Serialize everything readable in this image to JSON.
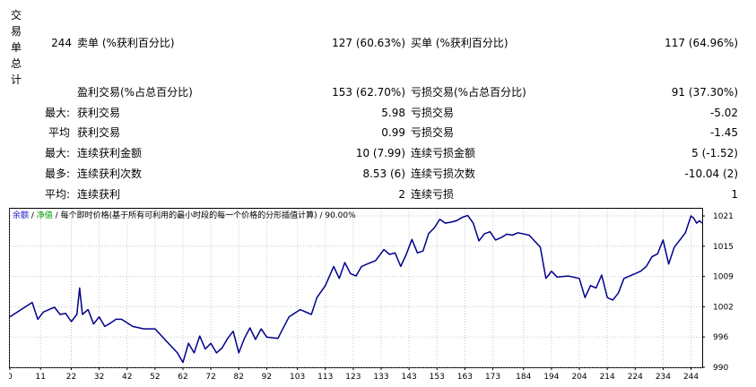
{
  "summary": {
    "vertical_label": [
      "交",
      "易",
      "单",
      "总",
      "计"
    ],
    "total": "244",
    "sell_label": "卖单 (%获利百分比)",
    "sell_value": "127 (60.63%)",
    "buy_label": "买单 (%获利百分比)",
    "buy_value": "117 (64.96%)",
    "profit_trades_label": "盈利交易(%占总百分比)",
    "profit_trades_value": "153 (62.70%)",
    "loss_trades_label": "亏损交易(%占总百分比)",
    "loss_trades_value": "91 (37.30%)"
  },
  "rows": [
    {
      "prefix": "最大:",
      "left_label": "获利交易",
      "left_value": "5.98",
      "right_label": "亏损交易",
      "right_value": "-5.02"
    },
    {
      "prefix": "平均",
      "left_label": "获利交易",
      "left_value": "0.99",
      "right_label": "亏损交易",
      "right_value": "-1.45"
    },
    {
      "prefix": "最大:",
      "left_label": "连续获利金额",
      "left_value": "10 (7.99)",
      "right_label": "连续亏损金额",
      "right_value": "5 (-1.52)"
    },
    {
      "prefix": "最多:",
      "left_label": "连续获利次数",
      "left_value": "8.53 (6)",
      "right_label": "连续亏损次数",
      "right_value": "-10.04 (2)"
    },
    {
      "prefix": "平均:",
      "left_label": "连续获利",
      "left_value": "2",
      "right_label": "连续亏损",
      "right_value": "1"
    }
  ],
  "legend": {
    "balance": "余额",
    "sep1": " / ",
    "equity": "净值",
    "sep2": " / ",
    "desc": "每个即时价格(基于所有可利用的最小时段的每一个价格的分形插值计算) / 90.00%"
  },
  "colors": {
    "balance_line": "#00008b",
    "grid": "#c8c8c8",
    "legend_balance": "#1a1acc",
    "legend_equity": "#00a000"
  },
  "chart_data": {
    "type": "line",
    "xlim": [
      0,
      248
    ],
    "ylim": [
      990,
      1023
    ],
    "xticks": [
      "0",
      "11",
      "22",
      "32",
      "42",
      "52",
      "62",
      "72",
      "82",
      "92",
      "103",
      "113",
      "123",
      "133",
      "143",
      "153",
      "163",
      "173",
      "184",
      "194",
      "204",
      "214",
      "224",
      "234",
      "244"
    ],
    "xtick_values": [
      0,
      11,
      22,
      32,
      42,
      52,
      62,
      72,
      82,
      92,
      103,
      113,
      123,
      133,
      143,
      153,
      163,
      173,
      184,
      194,
      204,
      214,
      224,
      234,
      244
    ],
    "yticks": [
      "990",
      "996",
      "1002",
      "1009",
      "1015",
      "1021"
    ],
    "ytick_values": [
      990,
      996.3,
      1002.6,
      1008.9,
      1015.2,
      1021.5
    ],
    "series": [
      {
        "x": [
          0,
          4,
          8,
          10,
          12,
          14,
          16,
          18,
          20,
          22,
          24,
          25,
          26,
          28,
          30,
          32,
          34,
          36,
          38,
          40,
          44,
          48,
          52,
          56,
          60,
          62,
          64,
          66,
          68,
          70,
          72,
          74,
          76,
          78,
          80,
          82,
          84,
          86,
          88,
          90,
          92,
          96,
          100,
          104,
          108,
          110,
          113,
          116,
          118,
          120,
          122,
          124,
          126,
          128,
          131,
          134,
          136,
          138,
          140,
          142,
          144,
          146,
          148,
          150,
          152,
          154,
          156,
          158,
          160,
          162,
          164,
          166,
          168,
          170,
          172,
          174,
          176,
          178,
          180,
          182,
          186,
          190,
          192,
          193,
          194,
          196,
          200,
          204,
          206,
          208,
          210,
          212,
          214,
          216,
          218,
          220,
          222,
          224,
          226,
          228,
          230,
          232,
          234,
          236,
          238,
          240,
          242,
          244,
          245,
          246,
          247,
          248
        ],
        "y": [
          1000.5,
          1002,
          1003.5,
          1000,
          1001.5,
          1002,
          1002.5,
          1001,
          1001.2,
          999.5,
          1001,
          1006.5,
          1001,
          1002,
          999,
          1000.5,
          998.5,
          999.2,
          1000,
          1000,
          998.5,
          998,
          998,
          995.5,
          993,
          991,
          995,
          993,
          996.5,
          993.8,
          995,
          993,
          994,
          996,
          997.5,
          993,
          996,
          998.2,
          995.8,
          998,
          996.3,
          996,
          1000.5,
          1002,
          1001,
          1004.5,
          1007,
          1011,
          1008.5,
          1011.8,
          1009.5,
          1009,
          1011,
          1011.5,
          1012.2,
          1014.5,
          1013.5,
          1013.8,
          1011,
          1013.5,
          1016.6,
          1013.8,
          1014.2,
          1017.8,
          1019,
          1020.8,
          1020,
          1020.2,
          1020.5,
          1021.2,
          1021.6,
          1020,
          1016.3,
          1017.8,
          1018.2,
          1016.5,
          1017,
          1017.7,
          1017.5,
          1018,
          1017.5,
          1015,
          1008.5,
          1009.2,
          1010,
          1008.8,
          1009,
          1008.5,
          1004.5,
          1007,
          1006.5,
          1009.2,
          1004.5,
          1004,
          1005.5,
          1008.5,
          1009,
          1009.5,
          1010,
          1011,
          1013,
          1013.6,
          1016.5,
          1011.5,
          1015,
          1016.5,
          1018,
          1021.5,
          1021,
          1020,
          1020.5,
          1020
        ]
      }
    ]
  }
}
